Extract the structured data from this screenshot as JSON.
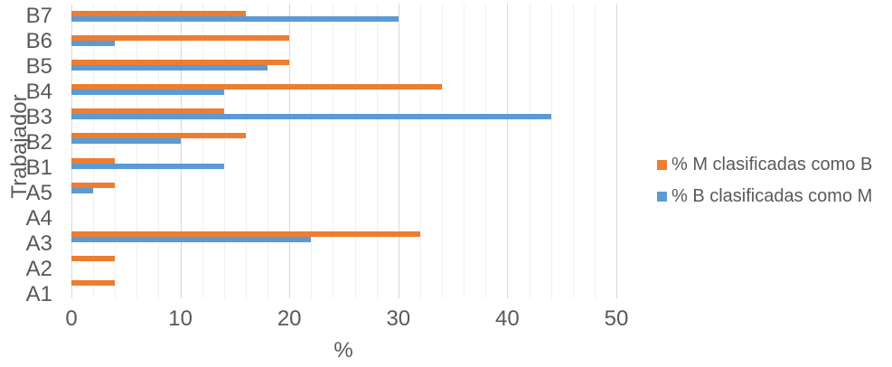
{
  "chart_data": {
    "type": "bar",
    "orientation": "horizontal",
    "ylabel": "Trabajador",
    "xlabel": "%",
    "categories": [
      "B7",
      "B6",
      "B5",
      "B4",
      "B3",
      "B2",
      "B1",
      "A5",
      "A4",
      "A3",
      "A2",
      "A1"
    ],
    "series": [
      {
        "name": "% M clasificadas como B",
        "color": "#ED7D31",
        "values": [
          16,
          20,
          20,
          34,
          14,
          16,
          4,
          4,
          0,
          32,
          4,
          4
        ]
      },
      {
        "name": "% B clasificadas como M",
        "color": "#5B9BD5",
        "values": [
          30,
          4,
          18,
          14,
          44,
          10,
          14,
          2,
          0,
          22,
          0,
          0
        ]
      }
    ],
    "xlim": [
      0,
      50
    ],
    "xticks": [
      0,
      10,
      20,
      30,
      40,
      50
    ],
    "minor_grid_step": 2,
    "grid": "on",
    "legend_position": "right",
    "colors": {
      "text": "#595959",
      "grid_major": "#d9d9d9",
      "grid_minor": "#f0f0f0",
      "background": "#ffffff"
    }
  }
}
